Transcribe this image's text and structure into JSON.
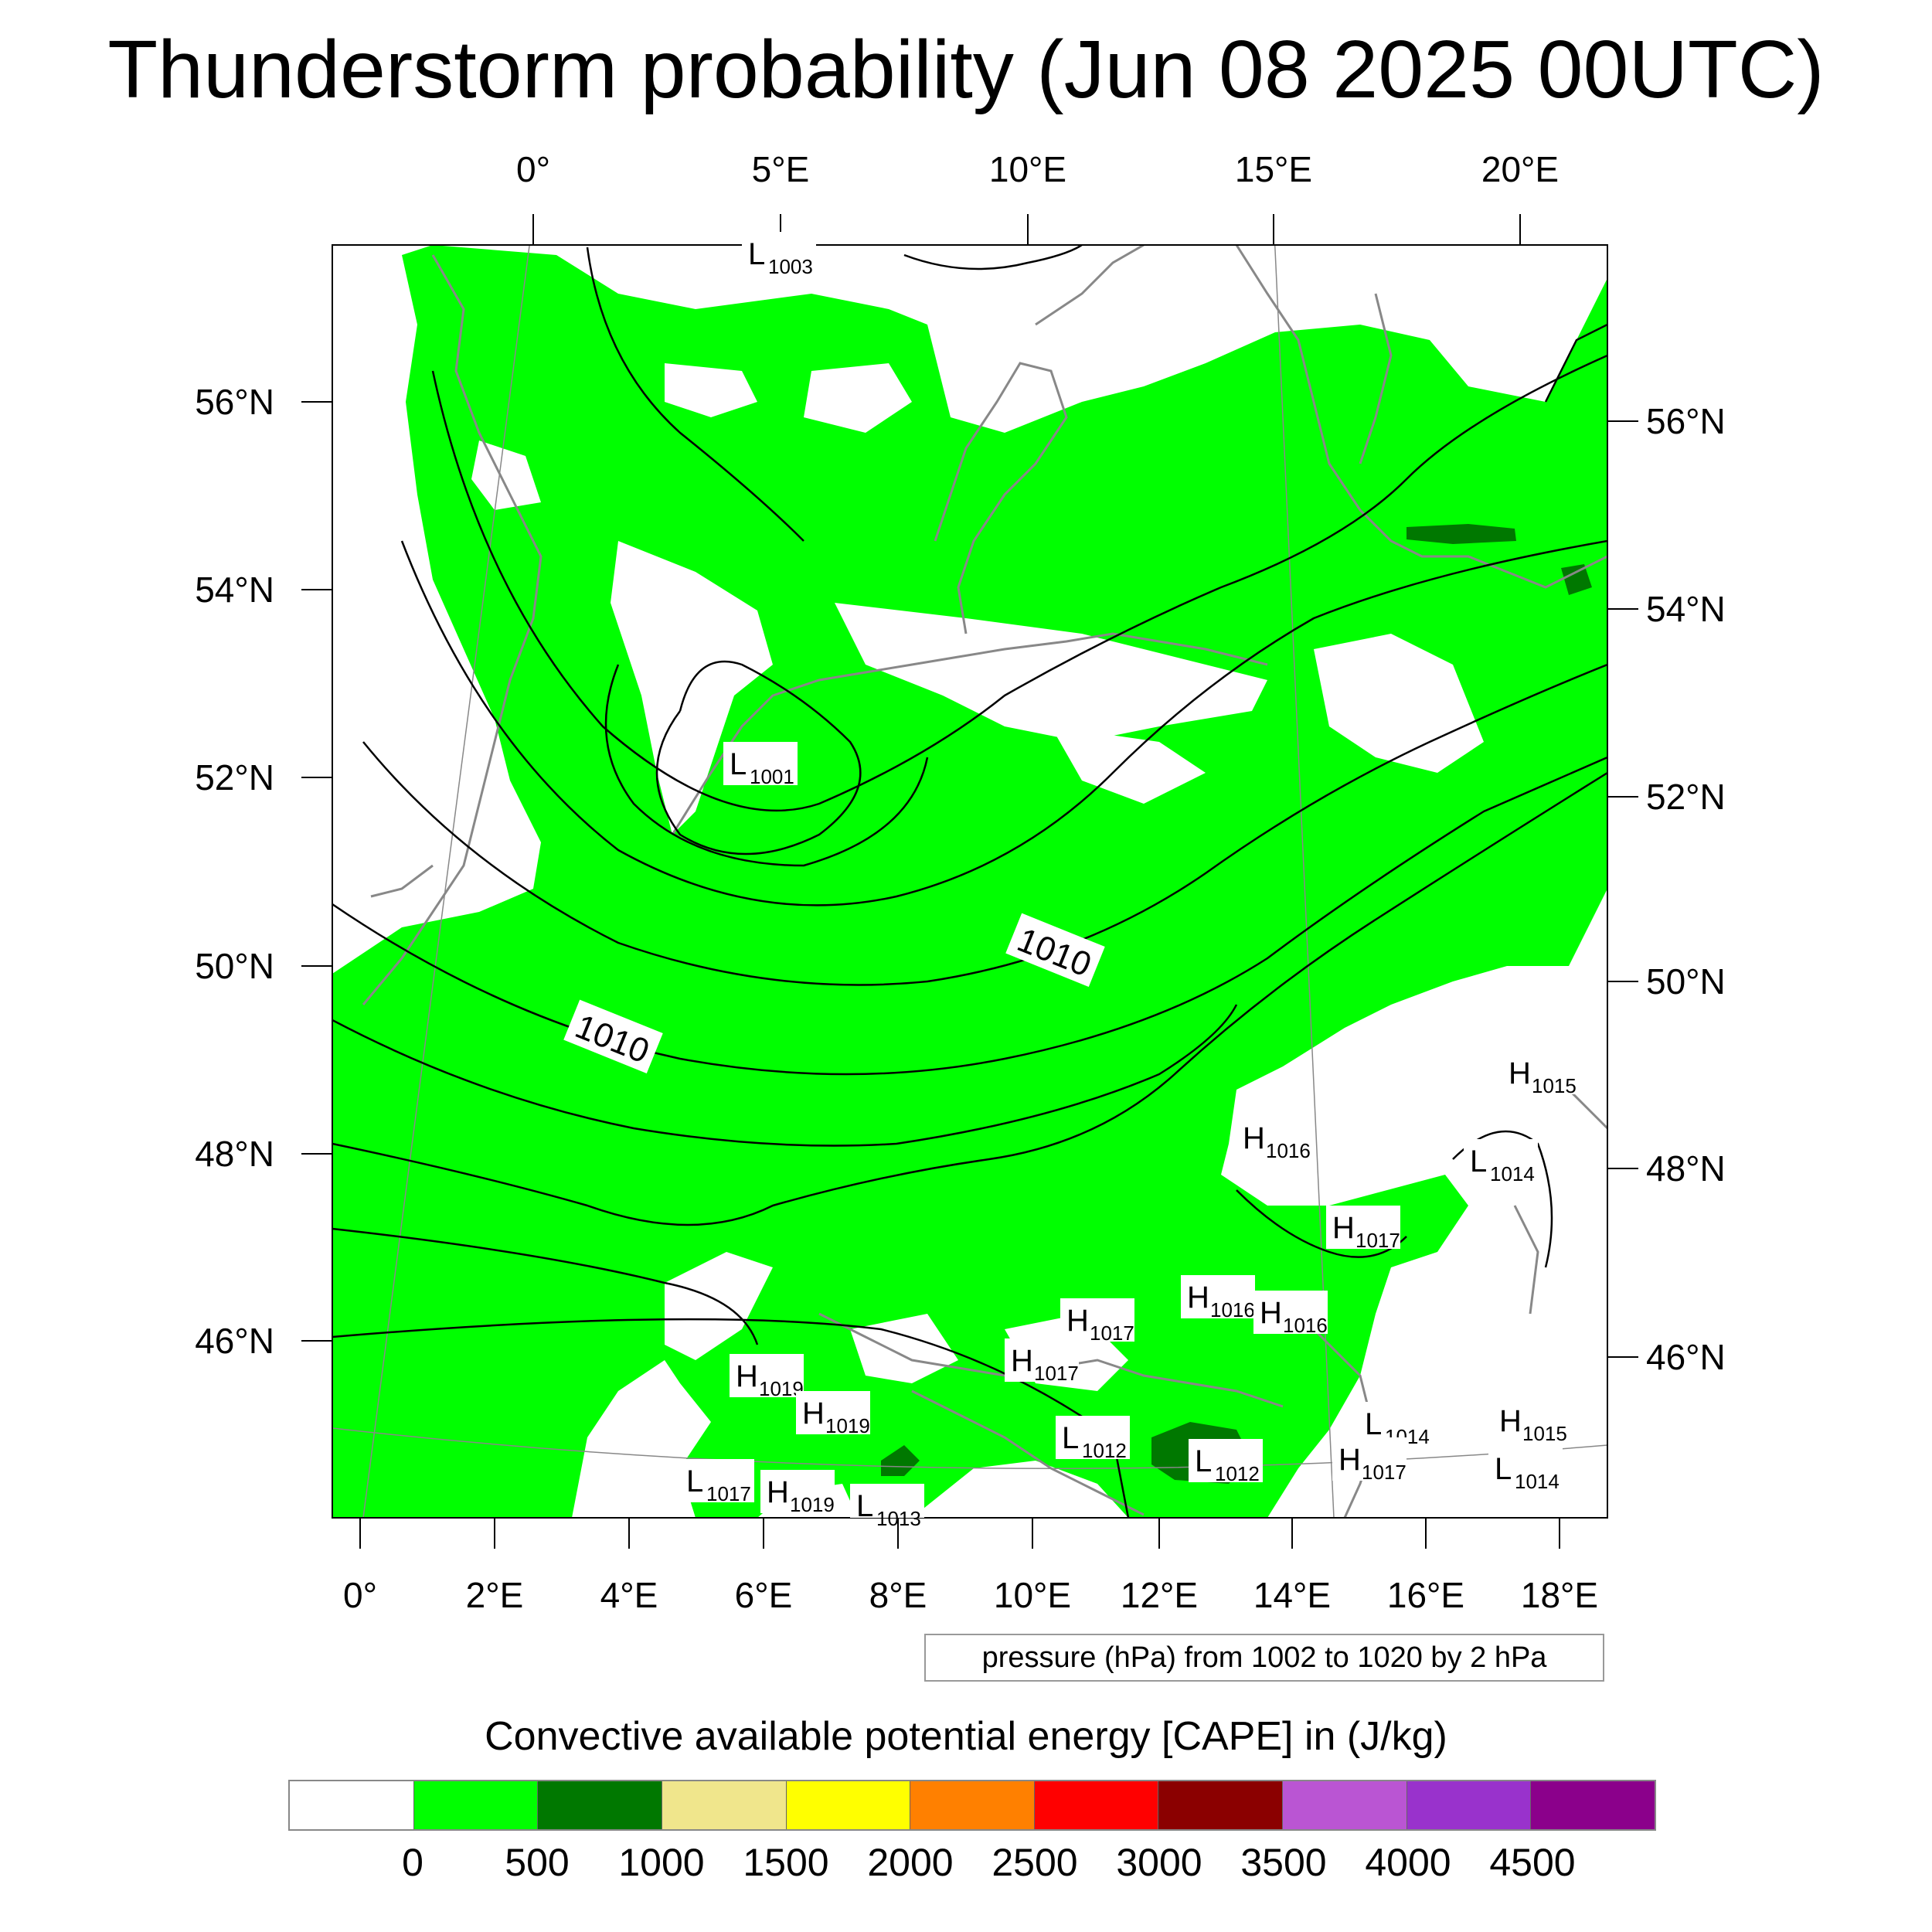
{
  "title": "Thunderstorm probability (Jun 08 2025 00UTC)",
  "map": {
    "top_lon_labels": [
      "0°",
      "5°E",
      "10°E",
      "15°E",
      "20°E"
    ],
    "bottom_lon_labels": [
      "0°",
      "2°E",
      "4°E",
      "6°E",
      "8°E",
      "10°E",
      "12°E",
      "14°E",
      "16°E",
      "18°E"
    ],
    "left_lat_labels": [
      "56°N",
      "54°N",
      "52°N",
      "50°N",
      "48°N",
      "46°N"
    ],
    "right_lat_labels": [
      "56°N",
      "54°N",
      "52°N",
      "50°N",
      "48°N",
      "46°N"
    ],
    "contour_labels": [
      "1010",
      "1010"
    ],
    "pressure_centers": [
      {
        "type": "L",
        "value": "1003"
      },
      {
        "type": "L",
        "value": "1001"
      },
      {
        "type": "H",
        "value": "1015"
      },
      {
        "type": "H",
        "value": "1016"
      },
      {
        "type": "L",
        "value": "1014"
      },
      {
        "type": "H",
        "value": "1017"
      },
      {
        "type": "H",
        "value": "1016"
      },
      {
        "type": "H",
        "value": "1016"
      },
      {
        "type": "H",
        "value": "1017"
      },
      {
        "type": "H",
        "value": "1017"
      },
      {
        "type": "H",
        "value": "1019"
      },
      {
        "type": "H",
        "value": "1019"
      },
      {
        "type": "L",
        "value": "1017"
      },
      {
        "type": "H",
        "value": "1019"
      },
      {
        "type": "L",
        "value": "1013"
      },
      {
        "type": "L",
        "value": "1012"
      },
      {
        "type": "L",
        "value": "1012"
      },
      {
        "type": "L",
        "value": "1014"
      },
      {
        "type": "H",
        "value": "1017"
      },
      {
        "type": "H",
        "value": "1015"
      },
      {
        "type": "L",
        "value": "1014"
      }
    ],
    "colors": {
      "cape_low": "#00ff00",
      "cape_mid": "#007800",
      "coastline": "#888888",
      "isobar": "#000000"
    }
  },
  "info_box": "pressure (hPa) from 1002 to 1020 by 2 hPa",
  "legend": {
    "title": "Convective available potential energy [CAPE] in (J/kg)",
    "colors": [
      "#ffffff",
      "#00ff00",
      "#007800",
      "#f0e68c",
      "#ffff00",
      "#ff8000",
      "#ff0000",
      "#8b0000",
      "#ba55d3",
      "#9932cc",
      "#8b008b"
    ],
    "ticks": [
      "0",
      "500",
      "1000",
      "1500",
      "2000",
      "2500",
      "3000",
      "3500",
      "4000",
      "4500"
    ]
  }
}
